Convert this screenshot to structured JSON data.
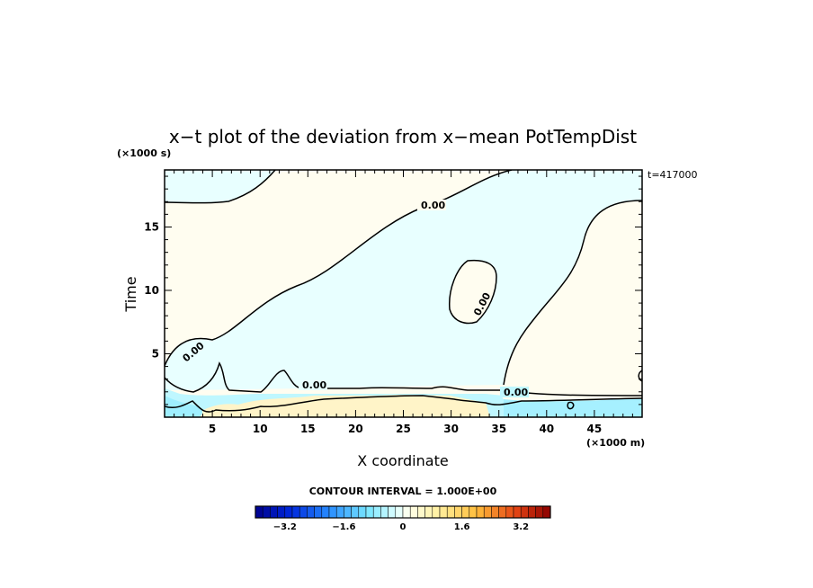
{
  "chart_data": {
    "type": "heatmap",
    "title": "x−t plot of the deviation from x−mean PotTempDist",
    "xlabel": "X coordinate",
    "ylabel": "Time",
    "x_unit": "(×1000 m)",
    "y_unit": "(×1000 s)",
    "time_stamp": "t=417000",
    "xlim": [
      0,
      50
    ],
    "ylim": [
      0,
      19.5
    ],
    "x_ticks": [
      5,
      10,
      15,
      20,
      25,
      30,
      35,
      40,
      45
    ],
    "y_ticks": [
      5,
      10,
      15
    ],
    "contour_label": "0.00",
    "contour_interval": "CONTOUR INTERVAL = 1.000E+00",
    "colorbar": {
      "ticks": [
        "−3.2",
        "−1.6",
        "0",
        "1.6",
        "3.2"
      ],
      "min": -4,
      "max": 4,
      "n_bins": 40
    },
    "regions": [
      {
        "name": "positive",
        "color": "#fffdf0"
      },
      {
        "name": "negative",
        "color": "#e8ffff"
      },
      {
        "name": "strong-positive",
        "color": "#ffe9a8"
      },
      {
        "name": "strong-negative",
        "color": "#9fefff"
      }
    ],
    "contour_levels": [
      0
    ],
    "grid": false
  }
}
